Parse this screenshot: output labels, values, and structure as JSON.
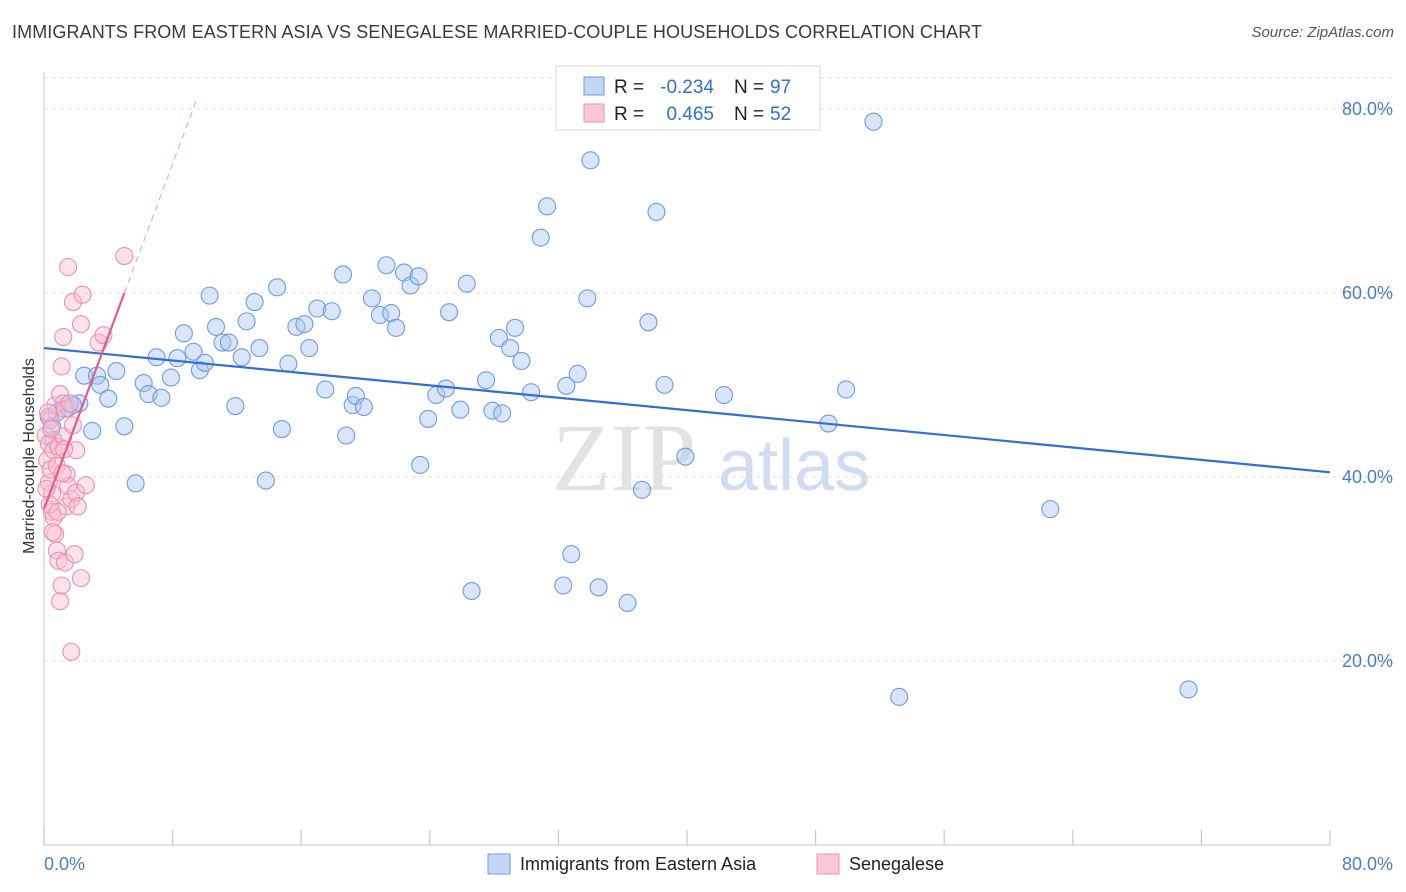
{
  "title": "IMMIGRANTS FROM EASTERN ASIA VS SENEGALESE MARRIED-COUPLE HOUSEHOLDS CORRELATION CHART",
  "source": "Source: ZipAtlas.com",
  "watermark": {
    "zip": "ZIP",
    "atlas": "atlas"
  },
  "colors": {
    "blue": "#6f9be0",
    "blue_line": "#2f6fd6",
    "pink": "#ee8fb0",
    "pink_line": "#e75a8d",
    "tick": "#4a7cc9"
  },
  "legend": {
    "rows": [
      {
        "r_label": "R =",
        "r_value": "-0.234",
        "n_label": "N =",
        "n_value": "97"
      },
      {
        "r_label": "R =",
        "r_value": "0.465",
        "n_label": "N =",
        "n_value": "52"
      }
    ]
  },
  "chart_data": {
    "type": "scatter",
    "title": "IMMIGRANTS FROM EASTERN ASIA VS SENEGALESE MARRIED-COUPLE HOUSEHOLDS CORRELATION CHART",
    "xlabel": "",
    "ylabel": "Married-couple Households",
    "xlim": [
      0,
      80
    ],
    "ylim": [
      0,
      84
    ],
    "x_tick_labels": [
      "0.0%",
      "80.0%"
    ],
    "y_ticks": [
      20,
      40,
      60,
      80
    ],
    "y_tick_labels": [
      "20.0%",
      "40.0%",
      "60.0%",
      "80.0%"
    ],
    "series": [
      {
        "name": "Immigrants from Eastern Asia",
        "R": -0.234,
        "N": 97,
        "trend": {
          "x0": 0,
          "y0": 54.0,
          "x1": 80,
          "y1": 40.5
        },
        "points": [
          [
            0.3,
            46.5
          ],
          [
            0.5,
            45.5
          ],
          [
            0.8,
            47
          ],
          [
            1.2,
            48
          ],
          [
            1.5,
            47.5
          ],
          [
            2.2,
            48
          ],
          [
            2.5,
            51
          ],
          [
            3,
            45
          ],
          [
            3.3,
            51
          ],
          [
            3.5,
            50
          ],
          [
            4,
            48.5
          ],
          [
            4.5,
            51.5
          ],
          [
            5,
            45.5
          ],
          [
            5.7,
            39.3
          ],
          [
            6.2,
            50.2
          ],
          [
            6.5,
            49
          ],
          [
            7,
            53
          ],
          [
            7.3,
            48.6
          ],
          [
            7.9,
            50.8
          ],
          [
            8.3,
            52.9
          ],
          [
            8.7,
            55.6
          ],
          [
            9.3,
            53.6
          ],
          [
            9.7,
            51.6
          ],
          [
            10,
            52.4
          ],
          [
            10.3,
            59.7
          ],
          [
            10.7,
            56.3
          ],
          [
            11.1,
            54.6
          ],
          [
            11.5,
            54.6
          ],
          [
            11.9,
            47.7
          ],
          [
            12.3,
            53
          ],
          [
            12.6,
            56.9
          ],
          [
            13.1,
            59
          ],
          [
            13.4,
            54
          ],
          [
            13.8,
            39.6
          ],
          [
            14.5,
            60.6
          ],
          [
            14.8,
            45.2
          ],
          [
            15.2,
            52.3
          ],
          [
            15.7,
            56.3
          ],
          [
            16.2,
            56.6
          ],
          [
            16.5,
            54
          ],
          [
            17,
            58.3
          ],
          [
            17.5,
            49.5
          ],
          [
            17.9,
            58
          ],
          [
            18.6,
            62
          ],
          [
            18.8,
            44.5
          ],
          [
            19.2,
            47.8
          ],
          [
            19.4,
            48.8
          ],
          [
            19.9,
            47.6
          ],
          [
            20.4,
            59.4
          ],
          [
            20.9,
            57.6
          ],
          [
            21.3,
            63
          ],
          [
            21.6,
            57.8
          ],
          [
            21.9,
            56.2
          ],
          [
            22.4,
            62.2
          ],
          [
            22.8,
            60.8
          ],
          [
            23.3,
            61.8
          ],
          [
            23.4,
            41.3
          ],
          [
            23.9,
            46.3
          ],
          [
            24.4,
            48.9
          ],
          [
            25,
            49.6
          ],
          [
            25.2,
            57.9
          ],
          [
            25.9,
            47.3
          ],
          [
            26.3,
            61
          ],
          [
            26.6,
            27.6
          ],
          [
            27.5,
            50.5
          ],
          [
            27.9,
            47.2
          ],
          [
            28.3,
            55.1
          ],
          [
            28.5,
            46.9
          ],
          [
            29,
            54
          ],
          [
            29.3,
            56.2
          ],
          [
            29.7,
            52.6
          ],
          [
            30.3,
            49.2
          ],
          [
            30.9,
            66
          ],
          [
            31.3,
            69.4
          ],
          [
            32.3,
            28.2
          ],
          [
            32.5,
            49.9
          ],
          [
            32.8,
            31.6
          ],
          [
            33.2,
            51.2
          ],
          [
            33.8,
            59.4
          ],
          [
            34,
            74.4
          ],
          [
            34.5,
            28
          ],
          [
            36.3,
            26.3
          ],
          [
            37.2,
            38.6
          ],
          [
            37.6,
            56.8
          ],
          [
            38.1,
            68.8
          ],
          [
            38.6,
            50
          ],
          [
            39.9,
            42.2
          ],
          [
            42.3,
            48.9
          ],
          [
            48.8,
            45.8
          ],
          [
            49.9,
            49.5
          ],
          [
            51.6,
            78.6
          ],
          [
            62.6,
            36.5
          ],
          [
            53.2,
            16.1
          ],
          [
            71.2,
            16.9
          ],
          [
            0.6,
            44
          ],
          [
            1.8,
            47.8
          ]
        ]
      },
      {
        "name": "Senegalese",
        "R": 0.465,
        "N": 52,
        "trend": {
          "x0": 0,
          "y0": 36.5,
          "x1": 5.0,
          "y1": 60.0,
          "dash_x1": 9.5,
          "dash_y1": 81.0
        },
        "points": [
          [
            0.1,
            44.5
          ],
          [
            0.2,
            41.8
          ],
          [
            0.3,
            43.6
          ],
          [
            0.3,
            39.4
          ],
          [
            0.4,
            46.2
          ],
          [
            0.4,
            40.8
          ],
          [
            0.5,
            38.2
          ],
          [
            0.5,
            36.2
          ],
          [
            0.6,
            35.6
          ],
          [
            0.6,
            42.9
          ],
          [
            0.7,
            47.8
          ],
          [
            0.7,
            33.8
          ],
          [
            0.8,
            41.2
          ],
          [
            0.8,
            32
          ],
          [
            0.9,
            43.3
          ],
          [
            0.9,
            30.9
          ],
          [
            1.0,
            49
          ],
          [
            1.0,
            26.5
          ],
          [
            1.1,
            52
          ],
          [
            1.1,
            28.2
          ],
          [
            1.2,
            55.2
          ],
          [
            1.2,
            44.4
          ],
          [
            1.3,
            47.4
          ],
          [
            1.3,
            30.7
          ],
          [
            1.4,
            40.3
          ],
          [
            1.4,
            36.8
          ],
          [
            1.5,
            62.8
          ],
          [
            1.5,
            39
          ],
          [
            1.6,
            48
          ],
          [
            1.7,
            37.6
          ],
          [
            1.7,
            21
          ],
          [
            1.8,
            59
          ],
          [
            1.8,
            45.6
          ],
          [
            1.9,
            31.6
          ],
          [
            2.0,
            38.3
          ],
          [
            2.0,
            42.9
          ],
          [
            2.1,
            36.8
          ],
          [
            2.3,
            56.6
          ],
          [
            2.3,
            29
          ],
          [
            2.4,
            59.8
          ],
          [
            2.6,
            39.1
          ],
          [
            3.4,
            54.6
          ],
          [
            3.7,
            55.4
          ],
          [
            5.0,
            64
          ],
          [
            0.15,
            38.7
          ],
          [
            0.25,
            47
          ],
          [
            0.35,
            37
          ],
          [
            0.45,
            45.2
          ],
          [
            0.55,
            34
          ],
          [
            0.85,
            36.2
          ],
          [
            1.15,
            40.4
          ],
          [
            1.25,
            43
          ]
        ]
      }
    ]
  },
  "bottom_legend": {
    "items": [
      "Immigrants from Eastern Asia",
      "Senegalese"
    ]
  }
}
